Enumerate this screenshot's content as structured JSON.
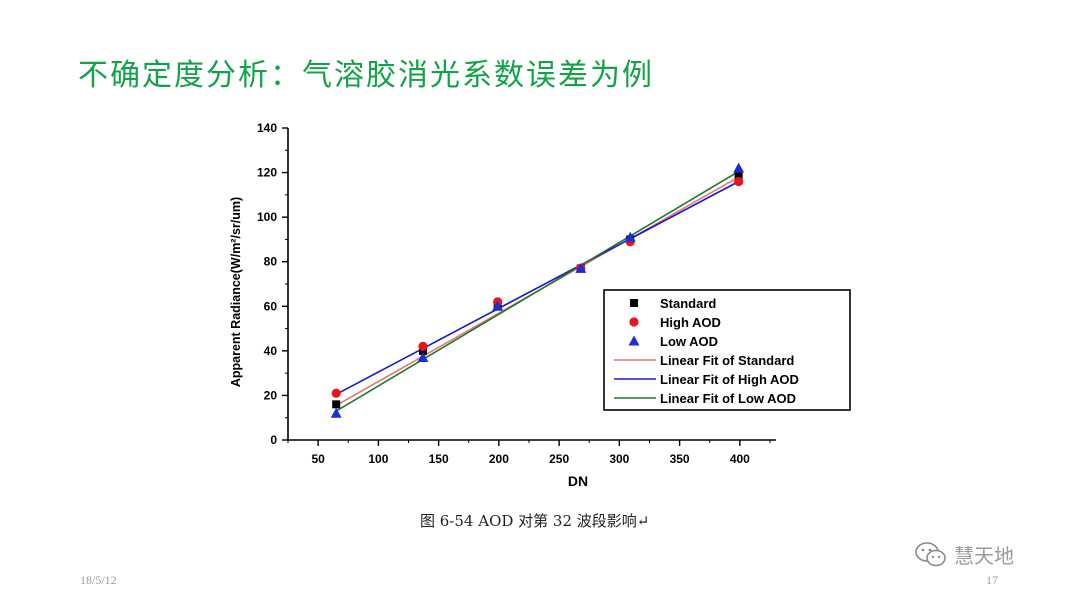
{
  "slide": {
    "title": "不确定度分析：气溶胶消光系数误差为例",
    "caption": "图 6-54  AOD 对第 32 波段影响↵",
    "date": "18/5/12",
    "page_number": "17",
    "watermark": "慧天地"
  },
  "chart_data": {
    "type": "scatter",
    "xlabel": "DN",
    "ylabel": "Apparent Radiance(W/m²/sr/um)",
    "xlim": [
      25,
      430
    ],
    "ylim": [
      0,
      140
    ],
    "xticks": [
      50,
      100,
      150,
      200,
      250,
      300,
      350,
      400
    ],
    "yticks": [
      0,
      20,
      40,
      60,
      80,
      100,
      120,
      140
    ],
    "grid": false,
    "legend_position": "lower-right",
    "series": [
      {
        "name": "Standard",
        "marker": "square",
        "color": "#000000",
        "x": [
          65,
          137,
          199,
          268,
          309,
          399
        ],
        "y": [
          16,
          40,
          61,
          77,
          90,
          119
        ]
      },
      {
        "name": "High AOD",
        "marker": "circle",
        "color": "#e8141c",
        "x": [
          65,
          137,
          199,
          268,
          309,
          399
        ],
        "y": [
          21,
          42,
          62,
          77,
          89,
          116
        ]
      },
      {
        "name": "Low AOD",
        "marker": "triangle",
        "color": "#1a2fd6",
        "x": [
          65,
          137,
          199,
          268,
          309,
          399
        ],
        "y": [
          12,
          37,
          60,
          77,
          91,
          122
        ]
      }
    ],
    "fits": [
      {
        "name": "Linear Fit of Standard",
        "color": "#e8737a",
        "x": [
          65,
          399
        ],
        "y": [
          15.5,
          118
        ]
      },
      {
        "name": "Linear Fit of High AOD",
        "color": "#1a1acc",
        "x": [
          65,
          399
        ],
        "y": [
          20.5,
          116
        ]
      },
      {
        "name": "Linear Fit of Low AOD",
        "color": "#1f7a2a",
        "x": [
          65,
          399
        ],
        "y": [
          13,
          120.5
        ]
      }
    ]
  }
}
